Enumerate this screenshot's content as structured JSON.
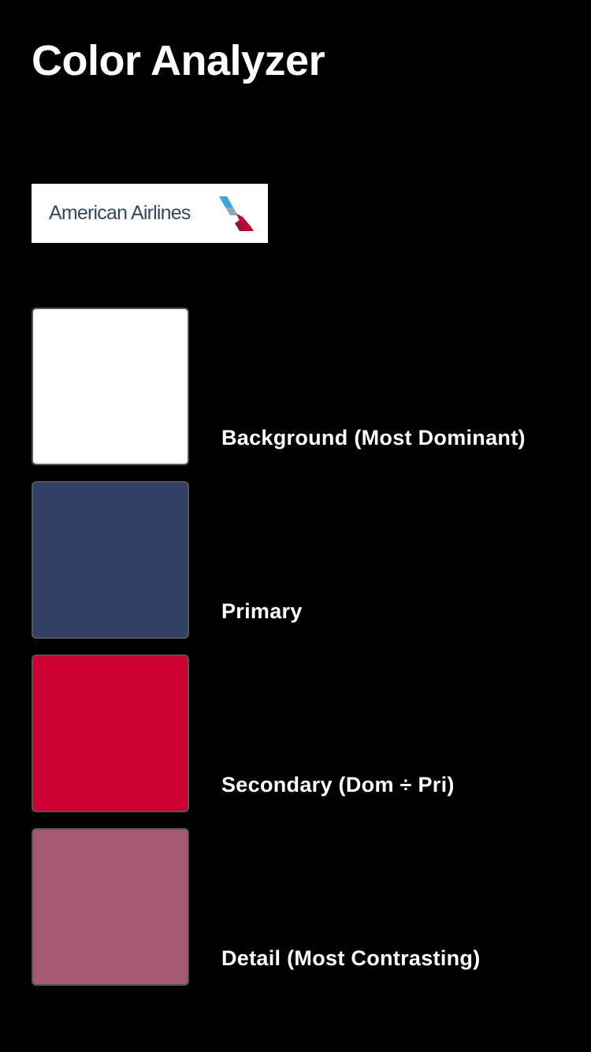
{
  "header": {
    "title": "Color Analyzer"
  },
  "logo": {
    "text": "American Airlines",
    "icon": "american-airlines-flight-symbol-icon",
    "background": "#ffffff",
    "text_color": "#36495a"
  },
  "swatches": [
    {
      "label": "Background (Most Dominant)",
      "color": "#ffffff"
    },
    {
      "label": "Primary",
      "color": "#313f64"
    },
    {
      "label": "Secondary (Dom ÷ Pri)",
      "color": "#cc0030"
    },
    {
      "label": "Detail (Most Contrasting)",
      "color": "#a35a72"
    }
  ]
}
